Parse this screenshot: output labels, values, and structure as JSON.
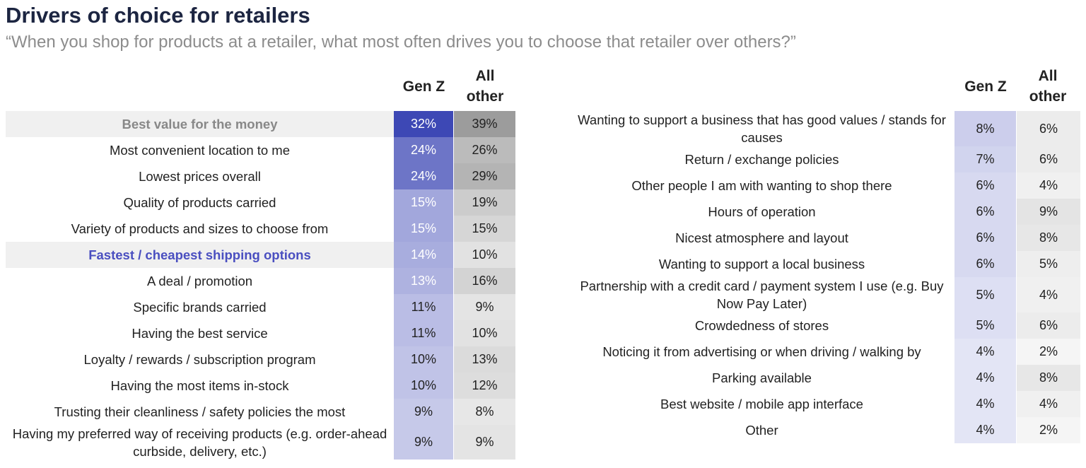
{
  "title": "Drivers of choice for retailers",
  "subtitle": "“When you shop for products at a retailer, what most often drives you to choose that retailer over others?”",
  "colors": {
    "genz_max": "#3d48b5",
    "other_max": "#9c9c9c",
    "highlight_bg": "#f0f0f0",
    "highlight_blue": "#4a4fc0"
  },
  "chart_data": {
    "type": "heatmap",
    "columns": [
      "Gen Z",
      "All\nother"
    ],
    "column_labels": {
      "genz": "Gen Z",
      "other_line1": "All",
      "other_line2": "other"
    },
    "left": [
      {
        "label": "Best value for the money",
        "genz": 32,
        "other": 39,
        "highlight": "grey"
      },
      {
        "label": "Most convenient location to me",
        "genz": 24,
        "other": 26
      },
      {
        "label": "Lowest prices overall",
        "genz": 24,
        "other": 29
      },
      {
        "label": "Quality of products carried",
        "genz": 15,
        "other": 19
      },
      {
        "label": "Variety of products and sizes to choose from",
        "genz": 15,
        "other": 15
      },
      {
        "label": "Fastest / cheapest shipping options",
        "genz": 14,
        "other": 10,
        "highlight": "blue"
      },
      {
        "label": "A deal / promotion",
        "genz": 13,
        "other": 16
      },
      {
        "label": "Specific brands carried",
        "genz": 11,
        "other": 9
      },
      {
        "label": "Having the best service",
        "genz": 11,
        "other": 10
      },
      {
        "label": "Loyalty / rewards / subscription program",
        "genz": 10,
        "other": 13
      },
      {
        "label": "Having the most items in-stock",
        "genz": 10,
        "other": 12
      },
      {
        "label": "Trusting their cleanliness / safety policies the most",
        "genz": 9,
        "other": 8
      },
      {
        "label": "Having my preferred way of receiving products (e.g. order-ahead curbside, delivery, etc.)",
        "genz": 9,
        "other": 9,
        "tall": true
      }
    ],
    "right": [
      {
        "label": "Wanting to support a business that has good values / stands for causes",
        "genz": 8,
        "other": 6,
        "tall": true
      },
      {
        "label": "Return / exchange policies",
        "genz": 7,
        "other": 6
      },
      {
        "label": "Other people I am with wanting to shop there",
        "genz": 6,
        "other": 4
      },
      {
        "label": "Hours of operation",
        "genz": 6,
        "other": 9
      },
      {
        "label": "Nicest atmosphere and layout",
        "genz": 6,
        "other": 8
      },
      {
        "label": "Wanting to support a local business",
        "genz": 6,
        "other": 5
      },
      {
        "label": "Partnership with a credit card / payment system I use (e.g. Buy Now Pay Later)",
        "genz": 5,
        "other": 4,
        "tall": true
      },
      {
        "label": "Crowdedness of stores",
        "genz": 5,
        "other": 6
      },
      {
        "label": "Noticing it from advertising or when driving / walking by",
        "genz": 4,
        "other": 2
      },
      {
        "label": "Parking available",
        "genz": 4,
        "other": 8
      },
      {
        "label": "Best website / mobile app interface",
        "genz": 4,
        "other": 4
      },
      {
        "label": "Other",
        "genz": 4,
        "other": 2
      }
    ],
    "unit": "%"
  }
}
